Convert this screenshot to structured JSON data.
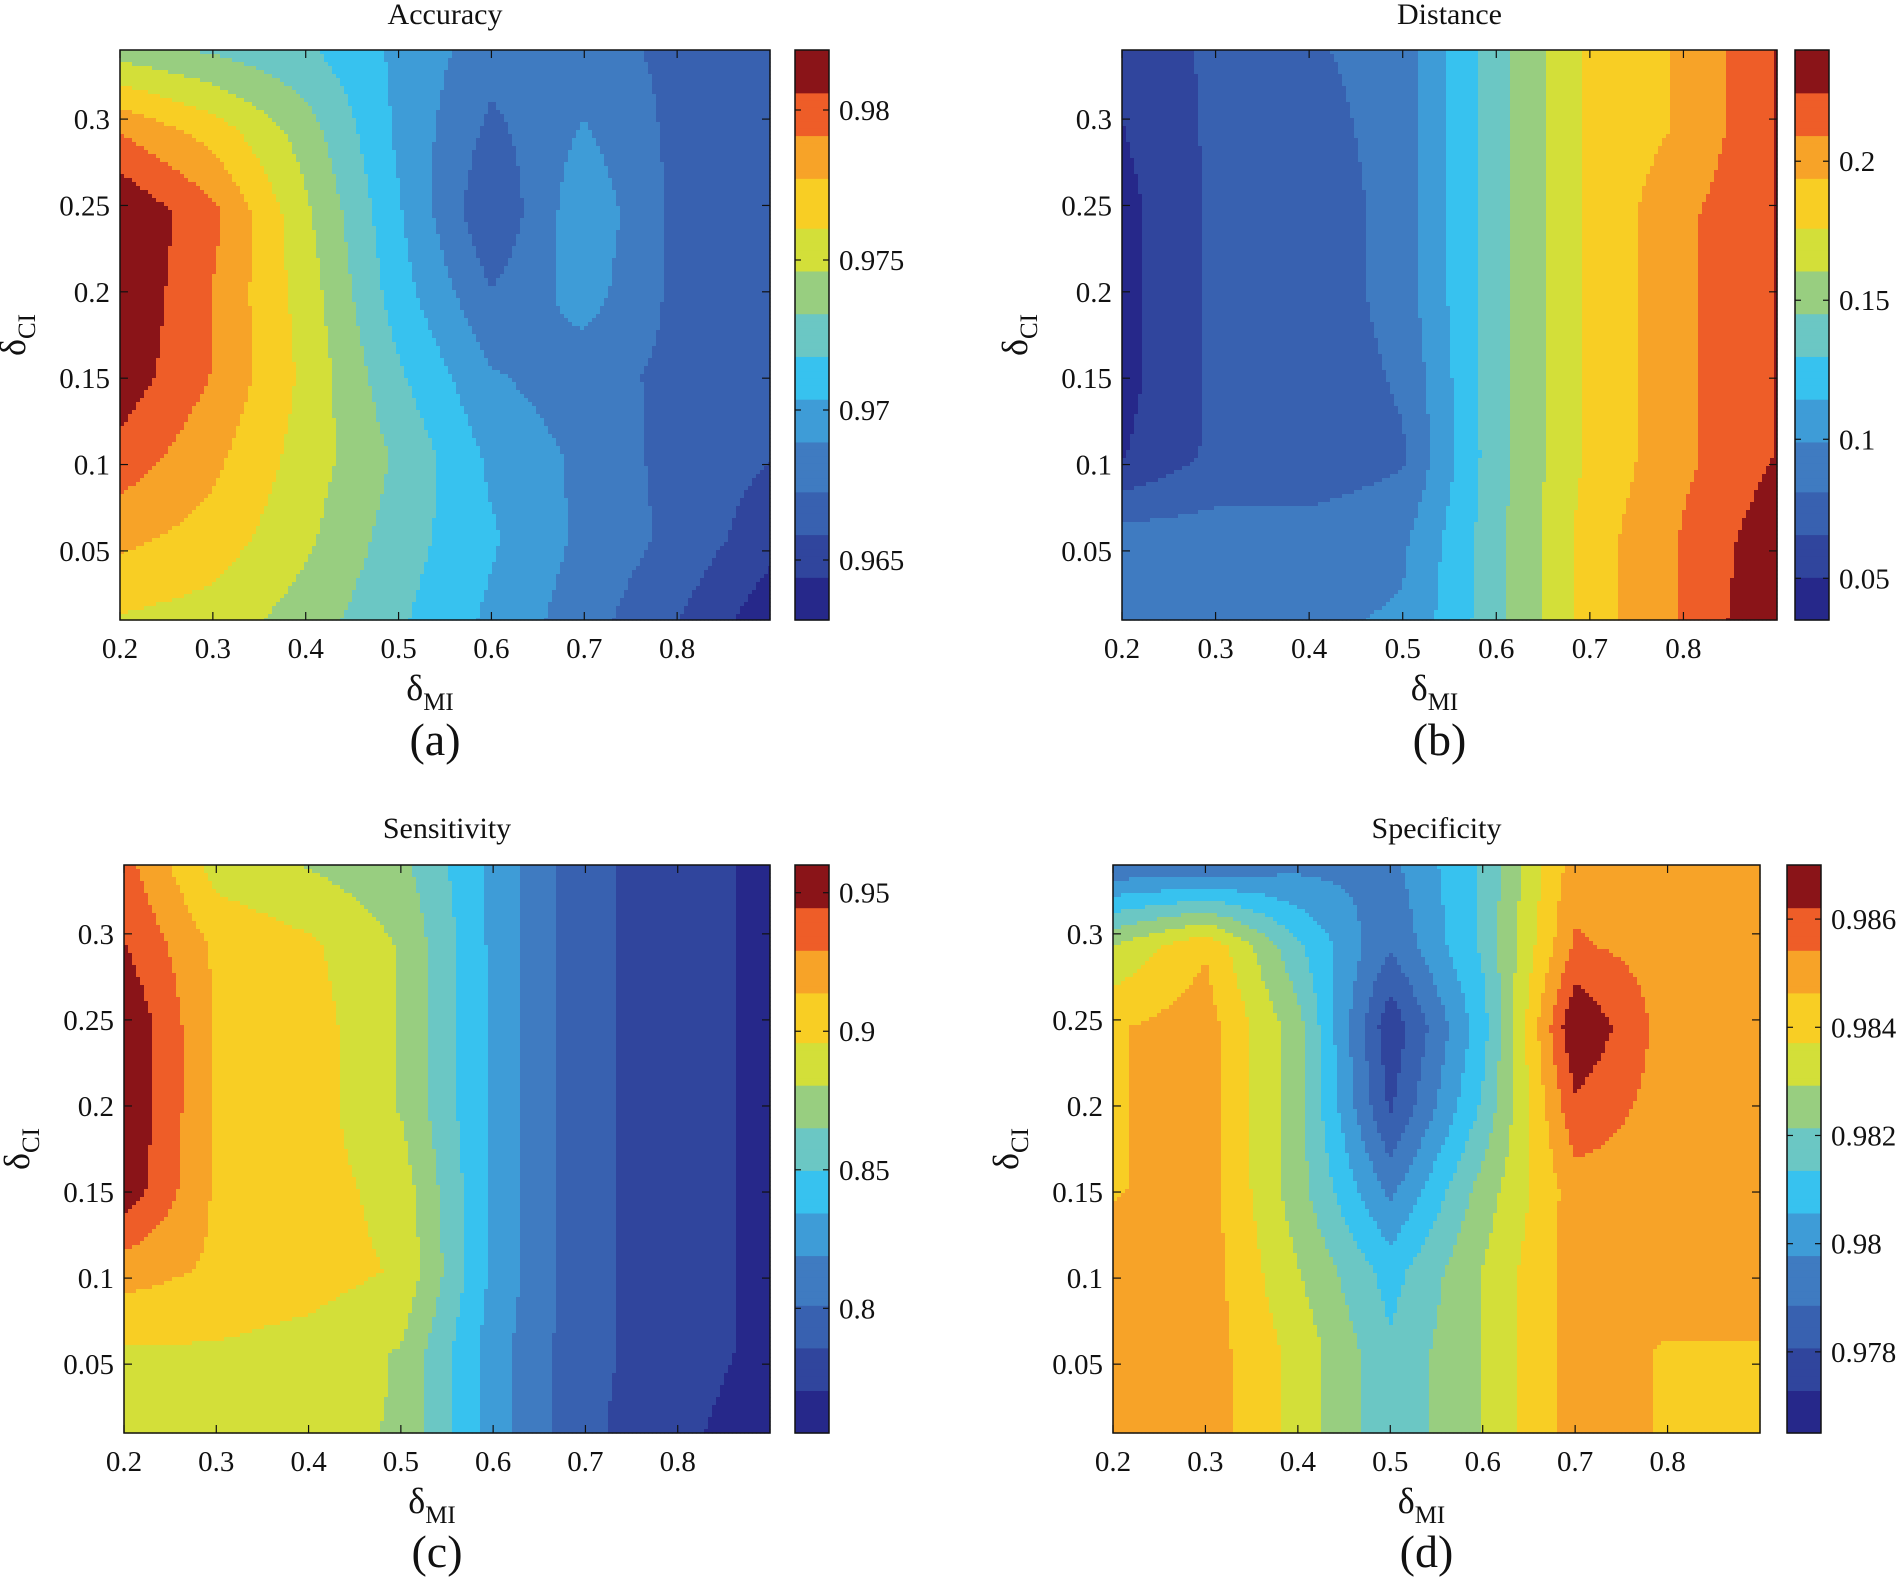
{
  "chart_data": [
    {
      "type": "heatmap",
      "title": "Accuracy",
      "panel_label": "(a)",
      "xlabel": "δ",
      "xlabel_sub": "MI",
      "ylabel": "δ",
      "ylabel_sub": "CI",
      "xlim": [
        0.2,
        0.9
      ],
      "ylim": [
        0.01,
        0.34
      ],
      "xticks": [
        "0.2",
        "0.3",
        "0.4",
        "0.5",
        "0.6",
        "0.7",
        "0.8"
      ],
      "yticks": [
        "0.05",
        "0.1",
        "0.15",
        "0.2",
        "0.25",
        "0.3"
      ],
      "clim": [
        0.963,
        0.982
      ],
      "colorbar_ticks": [
        "0.965",
        "0.97",
        "0.975",
        "0.98"
      ],
      "x": [
        0.2,
        0.3,
        0.4,
        0.5,
        0.6,
        0.7,
        0.8,
        0.9
      ],
      "y": [
        0.01,
        0.05,
        0.1,
        0.15,
        0.2,
        0.25,
        0.3,
        0.34
      ],
      "z": [
        [
          0.976,
          0.9755,
          0.974,
          0.972,
          0.97,
          0.968,
          0.966,
          0.9635
        ],
        [
          0.978,
          0.977,
          0.975,
          0.9725,
          0.9705,
          0.9685,
          0.967,
          0.965
        ],
        [
          0.98,
          0.978,
          0.9755,
          0.973,
          0.97,
          0.9685,
          0.9668,
          0.966
        ],
        [
          0.9815,
          0.979,
          0.9758,
          0.972,
          0.969,
          0.968,
          0.967,
          0.966
        ],
        [
          0.982,
          0.979,
          0.9755,
          0.971,
          0.9675,
          0.9695,
          0.967,
          0.966
        ],
        [
          0.982,
          0.9795,
          0.975,
          0.9705,
          0.966,
          0.97,
          0.967,
          0.966
        ],
        [
          0.979,
          0.977,
          0.974,
          0.97,
          0.967,
          0.969,
          0.967,
          0.966
        ],
        [
          0.974,
          0.973,
          0.972,
          0.97,
          0.968,
          0.968,
          0.967,
          0.966
        ]
      ]
    },
    {
      "type": "heatmap",
      "title": "Distance",
      "panel_label": "(b)",
      "xlabel": "δ",
      "xlabel_sub": "MI",
      "ylabel": "δ",
      "ylabel_sub": "CI",
      "xlim": [
        0.2,
        0.9
      ],
      "ylim": [
        0.01,
        0.34
      ],
      "xticks": [
        "0.2",
        "0.3",
        "0.4",
        "0.5",
        "0.6",
        "0.7",
        "0.8"
      ],
      "yticks": [
        "0.05",
        "0.1",
        "0.15",
        "0.2",
        "0.25",
        "0.3"
      ],
      "clim": [
        0.035,
        0.24
      ],
      "colorbar_ticks": [
        "0.05",
        "0.1",
        "0.15",
        "0.2"
      ],
      "x": [
        0.2,
        0.3,
        0.4,
        0.5,
        0.6,
        0.7,
        0.8,
        0.9
      ],
      "y": [
        0.01,
        0.05,
        0.1,
        0.15,
        0.2,
        0.25,
        0.3,
        0.34
      ],
      "z": [
        [
          0.095,
          0.095,
          0.095,
          0.1,
          0.14,
          0.185,
          0.21,
          0.24
        ],
        [
          0.09,
          0.09,
          0.09,
          0.095,
          0.14,
          0.185,
          0.21,
          0.235
        ],
        [
          0.05,
          0.07,
          0.07,
          0.08,
          0.14,
          0.18,
          0.205,
          0.225
        ],
        [
          0.045,
          0.07,
          0.07,
          0.085,
          0.14,
          0.18,
          0.205,
          0.225
        ],
        [
          0.045,
          0.07,
          0.07,
          0.09,
          0.14,
          0.18,
          0.205,
          0.225
        ],
        [
          0.045,
          0.07,
          0.07,
          0.09,
          0.14,
          0.18,
          0.205,
          0.225
        ],
        [
          0.05,
          0.07,
          0.075,
          0.09,
          0.14,
          0.18,
          0.195,
          0.225
        ],
        [
          0.055,
          0.07,
          0.08,
          0.09,
          0.14,
          0.18,
          0.195,
          0.225
        ]
      ]
    },
    {
      "type": "heatmap",
      "title": "Sensitivity",
      "panel_label": "(c)",
      "xlabel": "δ",
      "xlabel_sub": "MI",
      "ylabel": "δ",
      "ylabel_sub": "CI",
      "xlim": [
        0.2,
        0.9
      ],
      "ylim": [
        0.01,
        0.34
      ],
      "xticks": [
        "0.2",
        "0.3",
        "0.4",
        "0.5",
        "0.6",
        "0.7",
        "0.8"
      ],
      "yticks": [
        "0.05",
        "0.1",
        "0.15",
        "0.2",
        "0.25",
        "0.3"
      ],
      "clim": [
        0.755,
        0.96
      ],
      "colorbar_ticks": [
        "0.8",
        "0.85",
        "0.9",
        "0.95"
      ],
      "x": [
        0.2,
        0.3,
        0.4,
        0.5,
        0.6,
        0.7,
        0.8,
        0.9
      ],
      "y": [
        0.01,
        0.05,
        0.1,
        0.15,
        0.2,
        0.25,
        0.3,
        0.34
      ],
      "z": [
        [
          0.89,
          0.89,
          0.885,
          0.88,
          0.825,
          0.79,
          0.775,
          0.76
        ],
        [
          0.895,
          0.895,
          0.89,
          0.88,
          0.825,
          0.79,
          0.78,
          0.765
        ],
        [
          0.92,
          0.91,
          0.905,
          0.895,
          0.83,
          0.79,
          0.78,
          0.765
        ],
        [
          0.955,
          0.91,
          0.905,
          0.89,
          0.83,
          0.79,
          0.78,
          0.765
        ],
        [
          0.96,
          0.91,
          0.905,
          0.88,
          0.83,
          0.79,
          0.78,
          0.765
        ],
        [
          0.96,
          0.91,
          0.905,
          0.88,
          0.83,
          0.79,
          0.78,
          0.765
        ],
        [
          0.945,
          0.91,
          0.9,
          0.88,
          0.83,
          0.79,
          0.78,
          0.765
        ],
        [
          0.935,
          0.89,
          0.88,
          0.87,
          0.83,
          0.79,
          0.78,
          0.765
        ]
      ]
    },
    {
      "type": "heatmap",
      "title": "Specificity",
      "panel_label": "(d)",
      "xlabel": "δ",
      "xlabel_sub": "MI",
      "ylabel": "δ",
      "ylabel_sub": "CI",
      "xlim": [
        0.2,
        0.9
      ],
      "ylim": [
        0.01,
        0.34
      ],
      "xticks": [
        "0.2",
        "0.3",
        "0.4",
        "0.5",
        "0.6",
        "0.7",
        "0.8"
      ],
      "yticks": [
        "0.05",
        "0.1",
        "0.15",
        "0.2",
        "0.25",
        "0.3"
      ],
      "clim": [
        0.9765,
        0.987
      ],
      "colorbar_ticks": [
        "0.978",
        "0.98",
        "0.982",
        "0.984",
        "0.986"
      ],
      "x": [
        0.2,
        0.3,
        0.4,
        0.5,
        0.6,
        0.7,
        0.8,
        0.9
      ],
      "y": [
        0.01,
        0.05,
        0.1,
        0.15,
        0.2,
        0.25,
        0.3,
        0.34
      ],
      "z": [
        [
          0.985,
          0.985,
          0.9835,
          0.9815,
          0.983,
          0.985,
          0.9845,
          0.9845
        ],
        [
          0.985,
          0.985,
          0.9835,
          0.9815,
          0.983,
          0.985,
          0.9845,
          0.9845
        ],
        [
          0.985,
          0.985,
          0.983,
          0.981,
          0.983,
          0.985,
          0.985,
          0.985
        ],
        [
          0.9845,
          0.985,
          0.9825,
          0.9795,
          0.9825,
          0.985,
          0.985,
          0.985
        ],
        [
          0.9845,
          0.985,
          0.9825,
          0.978,
          0.9815,
          0.986,
          0.985,
          0.985
        ],
        [
          0.9845,
          0.985,
          0.9825,
          0.9775,
          0.981,
          0.987,
          0.985,
          0.985
        ],
        [
          0.983,
          0.9845,
          0.9815,
          0.979,
          0.9815,
          0.9855,
          0.985,
          0.985
        ],
        [
          0.979,
          0.979,
          0.9795,
          0.9795,
          0.9815,
          0.985,
          0.985,
          0.985
        ]
      ]
    }
  ]
}
